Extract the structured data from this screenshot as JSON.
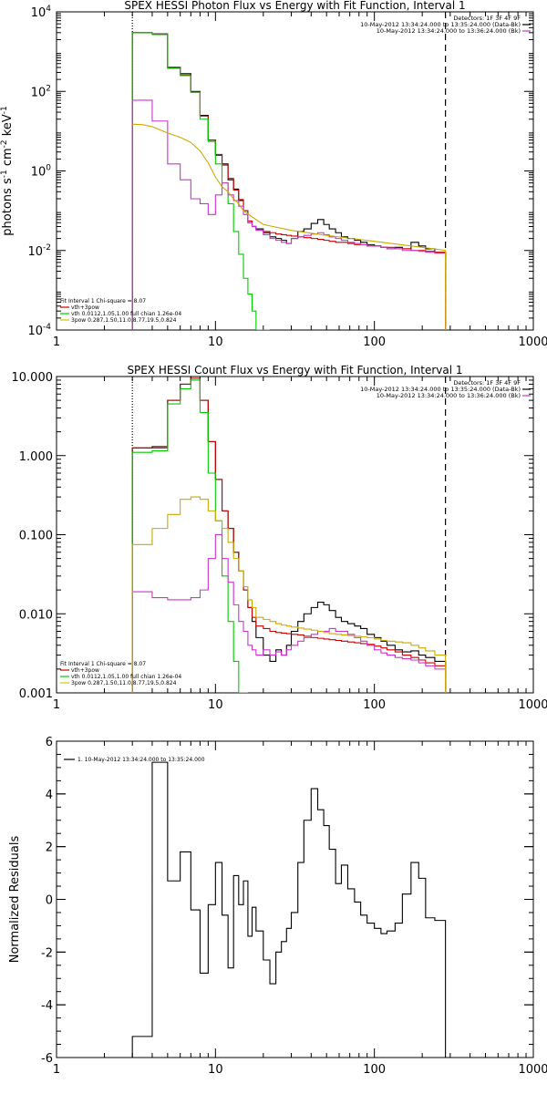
{
  "chart_data": [
    {
      "type": "line",
      "title": "SPEX HESSI Photon Flux vs Energy with Fit Function, Interval 1",
      "xlabel": "",
      "ylabel": "photons s^-1 cm^-2 keV^-1",
      "xscale": "log",
      "yscale": "log",
      "xlim": [
        1,
        1000
      ],
      "ylim": [
        0.0001,
        10000
      ],
      "xticks": [
        1,
        10,
        100,
        1000
      ],
      "xtick_labels": [
        "1",
        "10",
        "100",
        "1000"
      ],
      "yticks": [
        0.0001,
        0.01,
        1,
        100,
        10000
      ],
      "ytick_labels": [
        [
          "10",
          "-4"
        ],
        [
          "10",
          "-2"
        ],
        [
          "10",
          "0"
        ],
        [
          "10",
          "2"
        ],
        [
          "10",
          "4"
        ]
      ],
      "vlines": [
        {
          "x": 3,
          "style": "dotted"
        },
        {
          "x": 280,
          "style": "dashed"
        }
      ],
      "info_lines": [
        "Detectors: 1F 3F 4F 9F",
        "10-May-2012 13:34:24.000 to 13:35:24.000 (Data-Bk)",
        "10-May-2012 13:34:24.000 to 13:36:24.000 (Bk)"
      ],
      "info_colors": [
        "#000000",
        "#000000",
        "#cc33cc"
      ],
      "legend_lines": [
        "Fit Interval 1    Chi-square = 8.07",
        "vth+3pow",
        "vth 0.0112,1.05,1.00  full chian 1.26e-04",
        "3pow 0.287,1.50,11.0,8.77,19.5,0.824"
      ],
      "legend_colors": [
        "#000000",
        "#cc0000",
        "#00cc00",
        "#cccc00"
      ],
      "series": [
        {
          "color": "#000000",
          "style": "step",
          "x": [
            3,
            4,
            5,
            6,
            7,
            8,
            9,
            10,
            11,
            12,
            13,
            14,
            15,
            16,
            17,
            18,
            20,
            22,
            24,
            26,
            28,
            30,
            33,
            36,
            40,
            44,
            48,
            52,
            57,
            62,
            68,
            75,
            82,
            90,
            100,
            110,
            120,
            135,
            150,
            170,
            190,
            210,
            240,
            280
          ],
          "y": [
            3000,
            2800,
            400,
            280,
            100,
            25,
            6,
            2.5,
            1.5,
            0.6,
            0.35,
            0.18,
            0.1,
            0.05,
            0.04,
            0.035,
            0.028,
            0.022,
            0.02,
            0.018,
            0.015,
            0.02,
            0.03,
            0.035,
            0.048,
            0.06,
            0.045,
            0.035,
            0.028,
            0.022,
            0.02,
            0.018,
            0.016,
            0.014,
            0.013,
            0.012,
            0.011,
            0.012,
            0.011,
            0.016,
            0.013,
            0.011,
            0.009,
            0.0001
          ]
        },
        {
          "color": "#cc0000",
          "style": "step",
          "x": [
            3,
            4,
            5,
            6,
            7,
            8,
            9,
            10,
            11,
            12,
            13,
            14,
            15,
            16,
            17,
            18,
            20,
            22,
            24,
            26,
            28,
            30,
            33,
            36,
            40,
            44,
            48,
            52,
            57,
            62,
            68,
            75,
            82,
            90,
            100,
            110,
            120,
            135,
            150,
            170,
            190,
            210,
            240,
            280
          ],
          "y": [
            3000,
            2700,
            380,
            260,
            95,
            24,
            6,
            2.6,
            1.4,
            0.65,
            0.33,
            0.19,
            0.1,
            0.055,
            0.04,
            0.034,
            0.03,
            0.028,
            0.026,
            0.025,
            0.024,
            0.023,
            0.022,
            0.021,
            0.02,
            0.019,
            0.018,
            0.017,
            0.016,
            0.016,
            0.015,
            0.014,
            0.014,
            0.013,
            0.013,
            0.012,
            0.012,
            0.011,
            0.011,
            0.01,
            0.01,
            0.0095,
            0.009,
            0.0001
          ]
        },
        {
          "color": "#00cc00",
          "style": "step",
          "x": [
            3,
            4,
            5,
            6,
            7,
            8,
            9,
            10,
            11,
            12,
            13,
            14,
            15,
            16,
            17,
            18,
            20,
            22
          ],
          "y": [
            3000,
            2700,
            380,
            250,
            95,
            20,
            5.5,
            1.5,
            0.5,
            0.15,
            0.03,
            0.008,
            0.002,
            0.0008,
            0.0003,
            0.0001,
            0.0001,
            0.0001
          ]
        },
        {
          "color": "#cc33cc",
          "style": "step",
          "x": [
            3,
            4,
            5,
            6,
            7,
            8,
            9,
            10,
            11,
            12,
            13,
            14,
            15,
            16,
            17,
            18,
            20,
            22,
            24,
            26,
            28,
            30,
            33,
            36,
            40,
            44,
            48,
            52,
            57,
            62,
            68,
            75,
            82,
            90,
            100,
            110,
            120,
            135,
            150,
            170,
            190,
            210,
            240,
            280
          ],
          "y": [
            60,
            18,
            1.5,
            0.6,
            0.2,
            0.15,
            0.08,
            0.25,
            0.5,
            0.25,
            0.18,
            0.13,
            0.08,
            0.05,
            0.04,
            0.032,
            0.025,
            0.02,
            0.018,
            0.016,
            0.015,
            0.02,
            0.022,
            0.024,
            0.026,
            0.028,
            0.025,
            0.022,
            0.02,
            0.018,
            0.016,
            0.015,
            0.014,
            0.013,
            0.013,
            0.012,
            0.011,
            0.011,
            0.01,
            0.01,
            0.0095,
            0.009,
            0.0085,
            0.0001
          ]
        },
        {
          "color": "#ccaa00",
          "style": "line",
          "x": [
            3,
            3.5,
            4,
            5,
            6,
            7,
            8,
            9,
            10,
            11,
            12,
            13,
            14,
            15,
            17,
            20,
            30,
            50,
            100,
            200,
            280,
            280.5
          ],
          "y": [
            15,
            14.5,
            13,
            9,
            7,
            5.2,
            3.2,
            1.6,
            0.7,
            0.4,
            0.3,
            0.2,
            0.15,
            0.1,
            0.07,
            0.045,
            0.032,
            0.024,
            0.017,
            0.012,
            0.01,
            0.0001
          ]
        }
      ]
    },
    {
      "type": "line",
      "title": "SPEX HESSI Count Flux vs Energy with Fit Function, Interval 1",
      "xlabel": "",
      "ylabel": "",
      "xscale": "log",
      "yscale": "log",
      "xlim": [
        1,
        1000
      ],
      "ylim": [
        0.001,
        10
      ],
      "xticks": [
        1,
        10,
        100,
        1000
      ],
      "xtick_labels": [
        "1",
        "10",
        "100",
        "1000"
      ],
      "yticks": [
        0.001,
        0.01,
        0.1,
        1,
        10
      ],
      "ytick_labels": [
        "0.001",
        "0.010",
        "0.100",
        "1.000",
        "10.000"
      ],
      "vlines": [
        {
          "x": 3,
          "style": "dotted"
        },
        {
          "x": 280,
          "style": "dashed"
        }
      ],
      "info_lines": [
        "Detectors: 1F 3F 4F 9F",
        "10-May-2012 13:34:24.000 to 13:35:24.000 (Data-Bk)",
        "10-May-2012 13:34:24.000 to 13:36:24.000 (Bk)"
      ],
      "info_colors": [
        "#000000",
        "#000000",
        "#cc33cc"
      ],
      "legend_lines": [
        "Fit Interval 1    Chi-square = 8.07",
        "vth+3pow",
        "vth 0.0112,1.05,1.00  full chian 1.26e-04",
        "3pow 0.287,1.50,11.0,8.77,19.5,0.824"
      ],
      "legend_colors": [
        "#000000",
        "#cc0000",
        "#00cc00",
        "#cccc00"
      ],
      "series": [
        {
          "color": "#000000",
          "style": "step",
          "x": [
            3,
            4,
            5,
            6,
            7,
            8,
            9,
            10,
            11,
            12,
            13,
            14,
            15,
            16,
            17,
            18,
            20,
            22,
            24,
            26,
            28,
            30,
            33,
            36,
            40,
            44,
            48,
            52,
            57,
            62,
            68,
            75,
            82,
            90,
            100,
            110,
            120,
            135,
            150,
            170,
            190,
            210,
            240,
            280
          ],
          "y": [
            1.25,
            1.3,
            5.0,
            8.0,
            10.0,
            5.0,
            1.5,
            0.5,
            0.2,
            0.12,
            0.06,
            0.035,
            0.02,
            0.012,
            0.008,
            0.005,
            0.003,
            0.0025,
            0.0035,
            0.003,
            0.004,
            0.006,
            0.008,
            0.01,
            0.012,
            0.014,
            0.013,
            0.011,
            0.009,
            0.008,
            0.0075,
            0.007,
            0.0065,
            0.0055,
            0.005,
            0.0045,
            0.004,
            0.0035,
            0.0033,
            0.0034,
            0.003,
            0.0028,
            0.0025,
            0.001
          ]
        },
        {
          "color": "#cc0000",
          "style": "step",
          "x": [
            3,
            4,
            5,
            6,
            7,
            8,
            9,
            10,
            11,
            12,
            13,
            14,
            15,
            16,
            17,
            18,
            20,
            22,
            24,
            26,
            28,
            30,
            33,
            36,
            40,
            44,
            48,
            52,
            57,
            62,
            68,
            75,
            82,
            90,
            100,
            110,
            120,
            135,
            150,
            170,
            190,
            210,
            240,
            280
          ],
          "y": [
            1.25,
            1.25,
            5.0,
            8.0,
            9.5,
            5.0,
            1.5,
            0.5,
            0.2,
            0.12,
            0.06,
            0.035,
            0.02,
            0.012,
            0.009,
            0.007,
            0.0065,
            0.006,
            0.0058,
            0.0057,
            0.0056,
            0.0055,
            0.0054,
            0.0052,
            0.005,
            0.0049,
            0.0048,
            0.0047,
            0.0046,
            0.0045,
            0.0044,
            0.0043,
            0.0042,
            0.0041,
            0.0039,
            0.0037,
            0.0035,
            0.0033,
            0.003,
            0.0028,
            0.0026,
            0.0024,
            0.0022,
            0.001
          ]
        },
        {
          "color": "#00cc00",
          "style": "step",
          "x": [
            3,
            4,
            5,
            6,
            7,
            8,
            9,
            10,
            11,
            12,
            13,
            14,
            15,
            16
          ],
          "y": [
            1.1,
            1.15,
            4.5,
            7.0,
            9.0,
            3.5,
            0.6,
            0.15,
            0.03,
            0.008,
            0.0025,
            0.001,
            0.001,
            0.001
          ]
        },
        {
          "color": "#cc33cc",
          "style": "step",
          "x": [
            3,
            4,
            5,
            6,
            7,
            8,
            9,
            10,
            11,
            12,
            13,
            14,
            15,
            16,
            17,
            18,
            20,
            22,
            24,
            26,
            28,
            30,
            33,
            36,
            40,
            44,
            48,
            52,
            57,
            62,
            68,
            75,
            82,
            90,
            100,
            110,
            120,
            135,
            150,
            170,
            190,
            210,
            240,
            280
          ],
          "y": [
            0.019,
            0.016,
            0.015,
            0.015,
            0.016,
            0.02,
            0.05,
            0.1,
            0.05,
            0.025,
            0.013,
            0.008,
            0.006,
            0.004,
            0.0035,
            0.003,
            0.0035,
            0.003,
            0.0033,
            0.003,
            0.0035,
            0.004,
            0.0045,
            0.005,
            0.0055,
            0.006,
            0.006,
            0.0065,
            0.006,
            0.006,
            0.0055,
            0.005,
            0.0045,
            0.004,
            0.0035,
            0.0032,
            0.003,
            0.0028,
            0.0027,
            0.0026,
            0.0024,
            0.0022,
            0.002,
            0.001
          ]
        },
        {
          "color": "#ccaa00",
          "style": "step",
          "x": [
            3,
            4,
            5,
            6,
            7,
            8,
            9,
            10,
            11,
            12,
            13,
            14,
            15,
            16,
            17,
            18,
            20,
            22,
            24,
            26,
            28,
            30,
            33,
            36,
            40,
            44,
            48,
            52,
            57,
            62,
            68,
            75,
            82,
            90,
            100,
            110,
            120,
            135,
            150,
            170,
            190,
            210,
            240,
            280
          ],
          "y": [
            0.075,
            0.12,
            0.18,
            0.28,
            0.3,
            0.28,
            0.2,
            0.15,
            0.12,
            0.08,
            0.05,
            0.035,
            0.022,
            0.015,
            0.012,
            0.009,
            0.0085,
            0.008,
            0.0075,
            0.0072,
            0.007,
            0.0068,
            0.0066,
            0.0064,
            0.0062,
            0.006,
            0.0058,
            0.0056,
            0.0055,
            0.0054,
            0.0053,
            0.0052,
            0.0051,
            0.005,
            0.0048,
            0.0046,
            0.0045,
            0.0044,
            0.0043,
            0.004,
            0.0037,
            0.0034,
            0.003,
            0.001
          ]
        }
      ]
    },
    {
      "type": "line",
      "title": "",
      "xlabel": "",
      "ylabel": "Normalized Residuals",
      "xscale": "log",
      "yscale": "linear",
      "xlim": [
        1,
        1000
      ],
      "ylim": [
        -6,
        6
      ],
      "xticks": [
        1,
        10,
        100,
        1000
      ],
      "xtick_labels": [
        "1",
        "10",
        "100",
        "1000"
      ],
      "yticks": [
        -6,
        -4,
        -2,
        0,
        2,
        4,
        6
      ],
      "ytick_labels": [
        "-6",
        "-4",
        "-2",
        "0",
        "2",
        "4",
        "6"
      ],
      "legend_lines": [
        "1. 10-May-2012 13:34:24.000 to 13:35:24.000"
      ],
      "legend_colors": [
        "#000000"
      ],
      "series": [
        {
          "color": "#000000",
          "style": "step",
          "x": [
            3,
            4,
            5,
            6,
            7,
            8,
            9,
            10,
            11,
            12,
            13,
            14,
            15,
            16,
            17,
            18,
            20,
            22,
            24,
            26,
            28,
            30,
            33,
            36,
            40,
            44,
            48,
            52,
            57,
            62,
            68,
            75,
            82,
            90,
            100,
            110,
            120,
            135,
            150,
            170,
            190,
            210,
            240,
            280
          ],
          "y": [
            -5.2,
            5.2,
            0.7,
            1.8,
            -0.4,
            -2.8,
            -0.2,
            1.4,
            -0.6,
            -2.6,
            0.9,
            -0.2,
            0.7,
            -1.4,
            -0.3,
            -1.2,
            -2.3,
            -3.2,
            -2.0,
            -1.6,
            -1.1,
            -0.5,
            1.4,
            3.0,
            4.2,
            3.4,
            2.8,
            1.9,
            0.6,
            1.3,
            0.4,
            -0.1,
            -0.6,
            -0.9,
            -1.1,
            -1.3,
            -1.2,
            -0.9,
            0.2,
            1.4,
            0.8,
            -0.7,
            -0.8,
            -6.0
          ]
        }
      ]
    }
  ]
}
